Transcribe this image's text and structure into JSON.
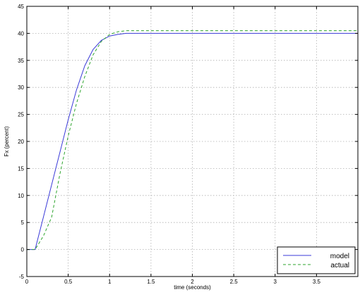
{
  "chart_data": {
    "type": "line",
    "xlabel": "time (seconds)",
    "ylabel": "Fx (percent)",
    "xlim": [
      0,
      4
    ],
    "ylim": [
      -5,
      45
    ],
    "xticks": [
      0,
      0.5,
      1,
      1.5,
      2,
      2.5,
      3,
      3.5
    ],
    "xtick_labels": [
      "0",
      "0.5",
      "1",
      "1.5",
      "2",
      "2.5",
      "3",
      "3.5"
    ],
    "yticks": [
      -5,
      0,
      5,
      10,
      15,
      20,
      25,
      30,
      35,
      40,
      45
    ],
    "ytick_labels": [
      "-5",
      "0",
      "5",
      "10",
      "15",
      "20",
      "25",
      "30",
      "35",
      "40",
      "45"
    ],
    "grid": true,
    "legend_position": "bottom-right",
    "series": [
      {
        "name": "model",
        "color": "#3a3ad8",
        "dash": "solid",
        "x": [
          0,
          0.1,
          0.2,
          0.3,
          0.4,
          0.5,
          0.6,
          0.7,
          0.8,
          0.9,
          1.0,
          1.1,
          1.2,
          1.3,
          1.5,
          2.0,
          2.5,
          3.0,
          3.5,
          4.0
        ],
        "y": [
          0,
          0,
          6,
          12,
          18,
          24,
          29.5,
          34,
          37,
          38.7,
          39.5,
          39.8,
          40,
          40,
          40,
          40,
          40,
          40,
          40,
          40
        ]
      },
      {
        "name": "actual",
        "color": "#2ea52e",
        "dash": "dashed",
        "x": [
          0,
          0.1,
          0.2,
          0.3,
          0.4,
          0.5,
          0.6,
          0.7,
          0.8,
          0.9,
          1.0,
          1.1,
          1.2,
          1.3,
          1.5,
          2.0,
          2.5,
          3.0,
          3.5,
          4.0
        ],
        "y": [
          0,
          0,
          2.5,
          6,
          14,
          21,
          27,
          32,
          36,
          38.5,
          39.8,
          40.3,
          40.5,
          40.5,
          40.5,
          40.5,
          40.5,
          40.5,
          40.5,
          40.5
        ]
      }
    ]
  }
}
